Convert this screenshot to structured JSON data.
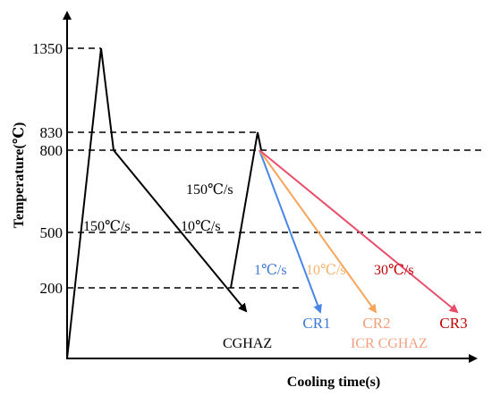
{
  "axes": {
    "y_title": "Temperature(℃)",
    "x_title": "Cooling time(s)"
  },
  "y_ticks": [
    "1350",
    "830",
    "800",
    "500",
    "200"
  ],
  "rates": {
    "r150_up": "150℃/s",
    "r150_down": "150℃/s",
    "r10_first": "10℃/s",
    "r1": "1℃/s",
    "r10": "10℃/s",
    "r30": "30℃/s"
  },
  "endpoints": {
    "cr1": "CR1",
    "cr2": "CR2",
    "cr3": "CR3"
  },
  "zones": {
    "cghaz": "CGHAZ",
    "icr_cghaz": "ICR CGHAZ"
  },
  "colors": {
    "cr1": "#4a86e8",
    "cr2": "#f6a55b",
    "cr3": "#e84d6a",
    "cr1_text": "#3c78d8",
    "cr2_text": "#f0a07a",
    "cr3_text": "#c00000",
    "r10_text": "#f6b26b",
    "icr_text": "#f4a080"
  }
}
